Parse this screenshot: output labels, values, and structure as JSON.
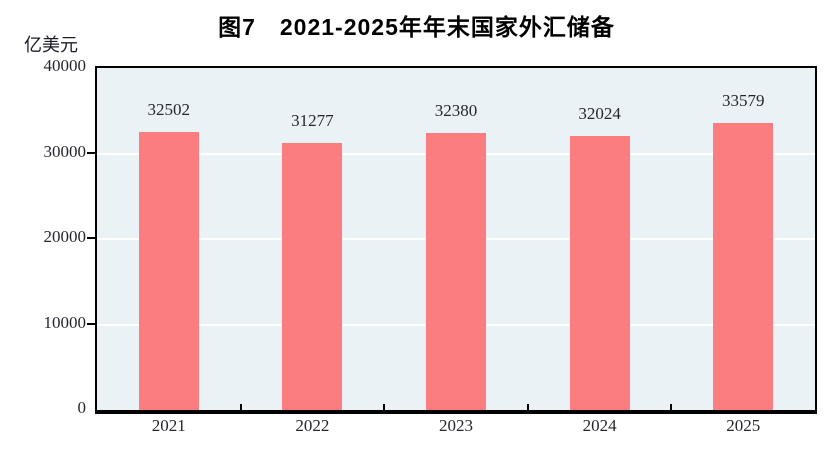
{
  "chart_data": {
    "type": "bar",
    "title": "图7　2021-2025年年末国家外汇储备",
    "ylabel": "亿美元",
    "xlabel": "",
    "categories": [
      "2021",
      "2022",
      "2023",
      "2024",
      "2025"
    ],
    "values": [
      32502,
      31277,
      32380,
      32024,
      33579
    ],
    "ylim": [
      0,
      40000
    ],
    "yticks": [
      0,
      10000,
      20000,
      30000,
      40000
    ],
    "grid": "horizontal white gridlines every 10000, drawn behind bars",
    "legend_position": "none",
    "data_labels": "above each bar",
    "colors": {
      "bar": "#fc7d80",
      "plot_background": "#eaf2f5",
      "gridline": "#ffffff",
      "axis": "#000000",
      "text": "#26262e",
      "title_text": "#000000",
      "page_background": "#ffffff"
    }
  }
}
